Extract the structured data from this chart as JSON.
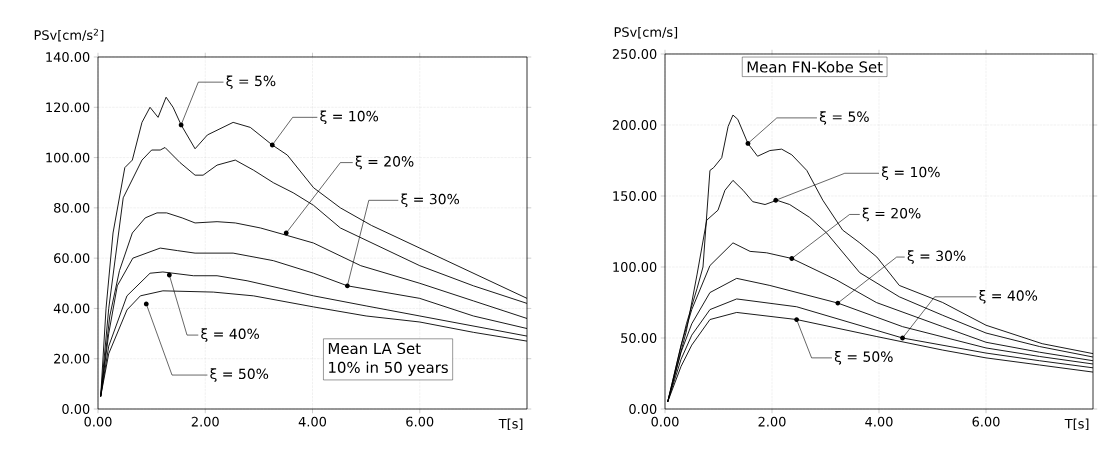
{
  "chart_data": [
    {
      "type": "line",
      "title": "Mean LA Set",
      "subtitle": "10% in 50 years",
      "xlabel": "T[s]",
      "ylabel": "PSv[cm/s$^{2}$]",
      "xlim": [
        0,
        8
      ],
      "xticks": [
        {
          "value": 0,
          "label": "0.00"
        },
        {
          "value": 2,
          "label": "2.00"
        },
        {
          "value": 4,
          "label": "4.00"
        },
        {
          "value": 6,
          "label": "6.00"
        }
      ],
      "ylim": [
        0,
        140
      ],
      "yticks": [
        {
          "value": 0,
          "label": "0.00"
        },
        {
          "value": 20,
          "label": "20.00"
        },
        {
          "value": 40,
          "label": "40.00"
        },
        {
          "value": 60,
          "label": "60.00"
        },
        {
          "value": 80,
          "label": "80.00"
        },
        {
          "value": 100,
          "label": "100.00"
        },
        {
          "value": 120,
          "label": "120.00"
        },
        {
          "value": 140,
          "label": "140.00"
        }
      ],
      "grid": true,
      "series": [
        {
          "color": "#000000",
          "x": [
            0.05,
            0.15,
            0.28,
            0.5,
            0.64,
            0.82,
            0.97,
            1.12,
            1.27,
            1.4,
            1.55,
            1.81,
            2.04,
            2.52,
            2.84,
            3.25,
            3.53,
            4.02,
            4.52,
            5.1,
            6.0,
            7.0,
            8.0
          ],
          "values": [
            5,
            40,
            70,
            96,
            99,
            114,
            120,
            116,
            124,
            120,
            113,
            103.5,
            109,
            114,
            112,
            105,
            101,
            88,
            80,
            73,
            64,
            54,
            44
          ]
        },
        {
          "color": "#000000",
          "x": [
            0.05,
            0.2,
            0.47,
            0.82,
            1.0,
            1.16,
            1.25,
            1.53,
            1.81,
            1.96,
            2.22,
            2.56,
            2.9,
            3.27,
            3.64,
            4.02,
            4.52,
            6.0,
            7.0,
            8.0
          ],
          "values": [
            5,
            40,
            84,
            99,
            103,
            103,
            104,
            98,
            93,
            93,
            97,
            99,
            95,
            90,
            86,
            81,
            72,
            57,
            49,
            42
          ]
        },
        {
          "color": "#000000",
          "x": [
            0.05,
            0.22,
            0.4,
            0.64,
            0.88,
            1.1,
            1.28,
            1.57,
            1.81,
            2.22,
            2.56,
            3.03,
            3.53,
            4.02,
            4.9,
            6.0,
            7.0,
            8.0
          ],
          "values": [
            5,
            37,
            55,
            70,
            76,
            78,
            78,
            76,
            74,
            74.5,
            74,
            72,
            69,
            66,
            57,
            50,
            43,
            36
          ]
        },
        {
          "color": "#000000",
          "x": [
            0.05,
            0.2,
            0.36,
            0.65,
            1.16,
            1.48,
            1.81,
            2.52,
            3.27,
            4.02,
            4.65,
            6.0,
            7.0,
            8.0
          ],
          "values": [
            5,
            30,
            49,
            60,
            64,
            63,
            62,
            62,
            59,
            54,
            49,
            44,
            37,
            32
          ]
        },
        {
          "color": "#000000",
          "x": [
            0.05,
            0.2,
            0.54,
            0.97,
            1.21,
            1.78,
            2.22,
            2.78,
            4.02,
            5.0,
            6.0,
            7.0,
            8.0
          ],
          "values": [
            5,
            25,
            45,
            54,
            54.5,
            53,
            53,
            51,
            45,
            41,
            37,
            33,
            29
          ]
        },
        {
          "color": "#000000",
          "x": [
            0.05,
            0.2,
            0.54,
            0.79,
            1.21,
            2.15,
            2.9,
            4.02,
            5.0,
            6.0,
            7.0,
            8.0
          ],
          "values": [
            5,
            22,
            39.4,
            45,
            47,
            46.5,
            45,
            40.6,
            37,
            34.6,
            30.5,
            27
          ]
        }
      ],
      "annotations": [
        {
          "text": "ξ = 5%",
          "x": 1.55,
          "y": 113
        },
        {
          "text": "ξ = 10%",
          "x": 3.25,
          "y": 105
        },
        {
          "text": "ξ = 20%",
          "x": 3.51,
          "y": 70
        },
        {
          "text": "ξ = 30%",
          "x": 4.65,
          "y": 49
        },
        {
          "text": "ξ = 40%",
          "x": 1.33,
          "y": 53.3
        },
        {
          "text": "ξ = 50%",
          "x": 0.9,
          "y": 41.8
        }
      ]
    },
    {
      "type": "line",
      "title": "Mean FN-Kobe Set",
      "xlabel": "T[s]",
      "ylabel": "PSv[cm/s]",
      "xlim": [
        0,
        8
      ],
      "xticks": [
        {
          "value": 0,
          "label": "0.00"
        },
        {
          "value": 2,
          "label": "2.00"
        },
        {
          "value": 4,
          "label": "4.00"
        },
        {
          "value": 6,
          "label": "6.00"
        }
      ],
      "ylim": [
        0,
        250
      ],
      "yticks": [
        {
          "value": 0,
          "label": "0.00"
        },
        {
          "value": 50,
          "label": "50.00"
        },
        {
          "value": 100,
          "label": "100.00"
        },
        {
          "value": 150,
          "label": "150.00"
        },
        {
          "value": 200,
          "label": "200.00"
        },
        {
          "value": 250,
          "label": "250.00"
        }
      ],
      "grid": true,
      "series": [
        {
          "color": "#000000",
          "x": [
            0.05,
            0.4,
            0.6,
            0.71,
            0.84,
            0.91,
            1.06,
            1.18,
            1.27,
            1.36,
            1.55,
            1.73,
            1.96,
            2.18,
            2.37,
            2.65,
            2.95,
            3.32,
            3.64,
            3.96,
            4.38,
            5.19,
            6.0,
            7.05,
            8.0
          ],
          "values": [
            5,
            60,
            85,
            100,
            168,
            170,
            177,
            199,
            207,
            204,
            187,
            178,
            182,
            183,
            179,
            168,
            147,
            126,
            117,
            107,
            87,
            75,
            59,
            46,
            39
          ]
        },
        {
          "color": "#000000",
          "x": [
            0.05,
            0.4,
            0.6,
            0.78,
            0.99,
            1.12,
            1.27,
            1.46,
            1.64,
            1.87,
            2.09,
            2.33,
            2.7,
            3.02,
            3.64,
            4.38,
            5.19,
            6.0,
            7.0,
            8.0
          ],
          "values": [
            5,
            55,
            95,
            133,
            140,
            154,
            161,
            154,
            146,
            144,
            147,
            144,
            135,
            124,
            96,
            79,
            66,
            53.5,
            44,
            36.6
          ]
        },
        {
          "color": "#000000",
          "x": [
            0.05,
            0.3,
            0.5,
            0.84,
            1.27,
            1.59,
            1.9,
            2.37,
            3.2,
            3.95,
            5.19,
            6.0,
            7.0,
            8.0
          ],
          "values": [
            5,
            45,
            70,
            101,
            117,
            111,
            110,
            106,
            91,
            75,
            58,
            47,
            40,
            34
          ]
        },
        {
          "color": "#000000",
          "x": [
            0.05,
            0.3,
            0.5,
            0.84,
            1.34,
            1.96,
            3.23,
            4.44,
            6.0,
            7.0,
            8.0
          ],
          "values": [
            5,
            40,
            60,
            82,
            92,
            87,
            74.6,
            58,
            43,
            37,
            31.7
          ]
        },
        {
          "color": "#000000",
          "x": [
            0.05,
            0.3,
            0.5,
            0.84,
            1.34,
            2.46,
            4.44,
            6.0,
            7.0,
            8.0
          ],
          "values": [
            5,
            35,
            52,
            70,
            77.5,
            72,
            50,
            39.4,
            34,
            29
          ]
        },
        {
          "color": "#000000",
          "x": [
            0.05,
            0.3,
            0.5,
            0.84,
            1.34,
            2.46,
            3.96,
            5.19,
            6.0,
            7.0,
            8.0
          ],
          "values": [
            5,
            30,
            45,
            63,
            68,
            63,
            51,
            41.5,
            36,
            31,
            26
          ]
        }
      ],
      "annotations": [
        {
          "text": "ξ = 5%",
          "x": 1.55,
          "y": 187
        },
        {
          "text": "ξ = 10%",
          "x": 2.07,
          "y": 147
        },
        {
          "text": "ξ = 20%",
          "x": 2.37,
          "y": 106
        },
        {
          "text": "ξ = 30%",
          "x": 3.23,
          "y": 74.6
        },
        {
          "text": "ξ = 40%",
          "x": 4.44,
          "y": 50
        },
        {
          "text": "ξ = 50%",
          "x": 2.46,
          "y": 63
        }
      ]
    }
  ]
}
